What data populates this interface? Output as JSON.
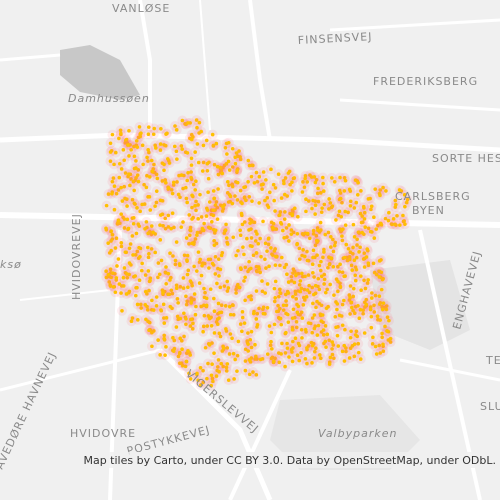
{
  "map": {
    "labels": {
      "vanlose": "VANLØSE",
      "finsensvej": "FINSENSVEJ",
      "frederiksberg": "FREDERIKSBERG",
      "damhussoen": "Damhussøen",
      "sorte_hest": "SORTE HEST",
      "carlsberg": "CARLSBERG",
      "byen": "BYEN",
      "kso": "ksø",
      "hvidovrevej": "HVIDOVREVEJ",
      "enghavevej": "ENGHAVEVEJ",
      "hvidovre": "HVIDOVRE",
      "vigerslevvej": "VIGERSLEVVEJ",
      "valbyparken": "Valbyparken",
      "avedore": "AVEDØRE HAVNEVEJ",
      "bostykkevej": "POSTYKKEVEJ",
      "te": "TE",
      "slu": "SLU"
    },
    "attribution": "Map tiles by Carto, under CC BY 3.0. Data by OpenStreetMap, under ODbL."
  }
}
